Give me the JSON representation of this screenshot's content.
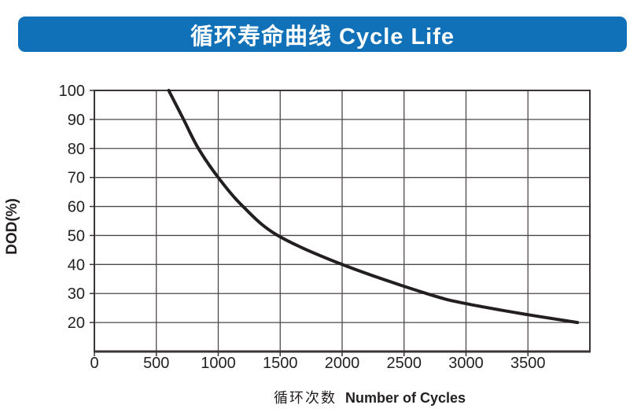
{
  "banner": {
    "title": "循环寿命曲线 Cycle Life",
    "bg_color": "#1171b8",
    "text_color": "#ffffff"
  },
  "chart_data": {
    "type": "line",
    "title": "循环寿命曲线 Cycle Life",
    "xlabel": "循环次数 Number of Cycles",
    "xlabel_zh": "循环次数",
    "xlabel_en": "Number of Cycles",
    "ylabel": "DOD(%)",
    "xlim": [
      0,
      4000
    ],
    "ylim": [
      10,
      100
    ],
    "x_ticks": [
      0,
      500,
      1000,
      1500,
      2000,
      2500,
      3000,
      3500
    ],
    "y_ticks": [
      20,
      30,
      40,
      50,
      60,
      70,
      80,
      90,
      100
    ],
    "grid": true,
    "legend": "none",
    "series": [
      {
        "name": "cycle-life-curve",
        "x": [
          600,
          720,
          840,
          1000,
          1200,
          1480,
          2000,
          2680,
          3000,
          3500,
          3900
        ],
        "y": [
          100,
          90,
          80,
          70,
          60,
          50,
          40,
          30,
          26.5,
          22.7,
          20
        ],
        "color": "#231f20",
        "stroke_width": 4
      }
    ],
    "grid_color": "#4f4848",
    "axis_color": "#3a3434",
    "tick_text_color": "#231f20"
  }
}
